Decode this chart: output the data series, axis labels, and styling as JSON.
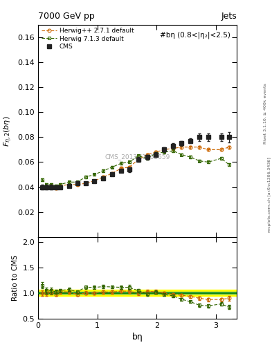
{
  "title_left": "7000 GeV pp",
  "title_right": "Jets",
  "annotation": "#bη (0.8<|η₂|<2.5)",
  "watermark": "CMS_2013_I1265659",
  "xlabel": "bη",
  "ylabel_main": "$F_{\\eta,2}(b\\eta)$",
  "ylabel_ratio": "Ratio to CMS",
  "right_label1": "Rivet 3.1.10, ≥ 400k events",
  "right_label2": "mcplots.cern.ch [arXiv:1306.3436]",
  "cms_x": [
    0.07,
    0.14,
    0.22,
    0.3,
    0.37,
    0.52,
    0.66,
    0.8,
    0.95,
    1.1,
    1.25,
    1.4,
    1.54,
    1.69,
    1.84,
    1.99,
    2.13,
    2.28,
    2.42,
    2.57,
    2.72,
    2.87,
    3.09,
    3.22
  ],
  "cms_y": [
    0.04,
    0.04,
    0.04,
    0.04,
    0.04,
    0.041,
    0.043,
    0.043,
    0.045,
    0.047,
    0.05,
    0.053,
    0.054,
    0.062,
    0.064,
    0.066,
    0.07,
    0.073,
    0.075,
    0.077,
    0.08,
    0.08,
    0.08,
    0.08
  ],
  "cms_yerr": [
    0.002,
    0.002,
    0.002,
    0.001,
    0.001,
    0.001,
    0.001,
    0.001,
    0.001,
    0.001,
    0.001,
    0.001,
    0.002,
    0.002,
    0.002,
    0.002,
    0.002,
    0.002,
    0.002,
    0.002,
    0.003,
    0.003,
    0.003,
    0.004
  ],
  "hpp_x": [
    0.07,
    0.14,
    0.22,
    0.3,
    0.37,
    0.52,
    0.66,
    0.8,
    0.95,
    1.1,
    1.25,
    1.4,
    1.54,
    1.69,
    1.84,
    1.99,
    2.13,
    2.28,
    2.42,
    2.57,
    2.72,
    2.87,
    3.09,
    3.22
  ],
  "hpp_y": [
    0.04,
    0.04,
    0.041,
    0.039,
    0.041,
    0.042,
    0.042,
    0.043,
    0.045,
    0.048,
    0.051,
    0.055,
    0.056,
    0.062,
    0.066,
    0.068,
    0.07,
    0.071,
    0.072,
    0.072,
    0.072,
    0.07,
    0.07,
    0.072
  ],
  "hpp_yerr": [
    0.001,
    0.001,
    0.001,
    0.001,
    0.001,
    0.001,
    0.001,
    0.001,
    0.001,
    0.001,
    0.001,
    0.001,
    0.001,
    0.001,
    0.001,
    0.001,
    0.001,
    0.001,
    0.001,
    0.001,
    0.001,
    0.001,
    0.001,
    0.001
  ],
  "h713_x": [
    0.07,
    0.14,
    0.22,
    0.3,
    0.37,
    0.52,
    0.66,
    0.8,
    0.95,
    1.1,
    1.25,
    1.4,
    1.54,
    1.69,
    1.84,
    1.99,
    2.13,
    2.28,
    2.42,
    2.57,
    2.72,
    2.87,
    3.09,
    3.22
  ],
  "h713_y": [
    0.046,
    0.042,
    0.042,
    0.041,
    0.042,
    0.044,
    0.044,
    0.048,
    0.05,
    0.053,
    0.056,
    0.059,
    0.06,
    0.065,
    0.063,
    0.067,
    0.068,
    0.069,
    0.066,
    0.064,
    0.061,
    0.06,
    0.063,
    0.058
  ],
  "h713_yerr": [
    0.001,
    0.001,
    0.001,
    0.001,
    0.001,
    0.001,
    0.001,
    0.001,
    0.001,
    0.001,
    0.001,
    0.001,
    0.001,
    0.001,
    0.001,
    0.001,
    0.001,
    0.001,
    0.001,
    0.001,
    0.001,
    0.001,
    0.001,
    0.001
  ],
  "cms_color": "#222222",
  "hpp_color": "#cc6600",
  "h713_color": "#336600",
  "xlim": [
    0.0,
    3.35
  ],
  "ylim_main": [
    0.0,
    0.17
  ],
  "ylim_ratio": [
    0.5,
    2.1
  ],
  "yticks_main": [
    0.02,
    0.04,
    0.06,
    0.08,
    0.1,
    0.12,
    0.14,
    0.16
  ],
  "yticks_ratio": [
    0.5,
    1.0,
    1.5,
    2.0
  ],
  "xticks": [
    0,
    1,
    2,
    3
  ]
}
